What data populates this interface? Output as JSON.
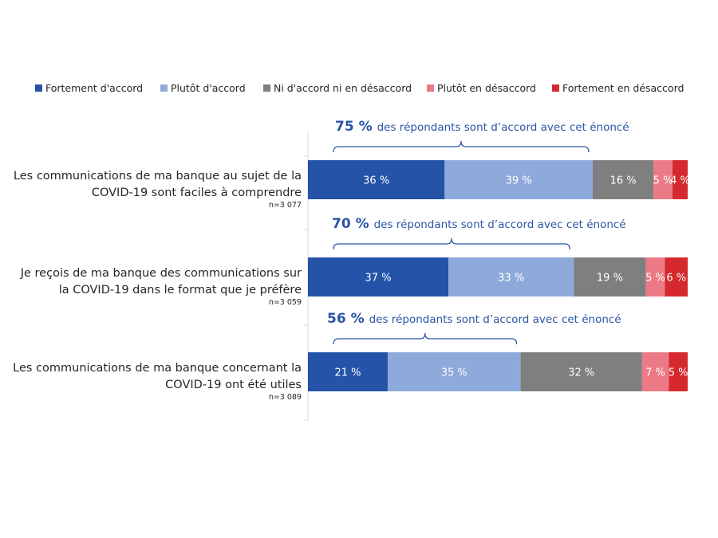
{
  "chart_data": {
    "type": "bar",
    "orientation": "horizontal",
    "stacked": true,
    "unit_suffix": " %",
    "legend_position": "top",
    "legend": [
      {
        "name": "Fortement d'accord",
        "color": "#2453a8"
      },
      {
        "name": "Plutôt d'accord",
        "color": "#8eaadb"
      },
      {
        "name": "Ni d'accord ni en désaccord",
        "color": "#7f7f7f"
      },
      {
        "name": "Plutôt en désaccord",
        "color": "#ec7a86"
      },
      {
        "name": "Fortement en désaccord",
        "color": "#d42a2e"
      }
    ],
    "categories": [
      {
        "label_lines": [
          "Les communications de ma banque au sujet de la",
          "COVID-19 sont faciles à comprendre"
        ],
        "n": "n=3 077",
        "values": [
          36,
          39,
          16,
          5,
          4
        ],
        "annotation": {
          "big": "75 %",
          "text": "des répondants sont d’accord avec cet énoncé"
        }
      },
      {
        "label_lines": [
          "Je reçois de ma banque des communications sur",
          "la COVID-19 dans le format que je préfère"
        ],
        "n": "n=3 059",
        "values": [
          37,
          33,
          19,
          5,
          6
        ],
        "annotation": {
          "big": "70 %",
          "text": "des répondants sont d’accord avec cet énoncé"
        }
      },
      {
        "label_lines": [
          "Les communications de ma banque concernant la",
          "COVID-19 ont été utiles"
        ],
        "n": "n=3 089",
        "values": [
          21,
          35,
          32,
          7,
          5
        ],
        "annotation": {
          "big": "56 %",
          "text": "des répondants sont d’accord avec cet énoncé"
        }
      }
    ],
    "xlim": [
      0,
      100
    ]
  }
}
